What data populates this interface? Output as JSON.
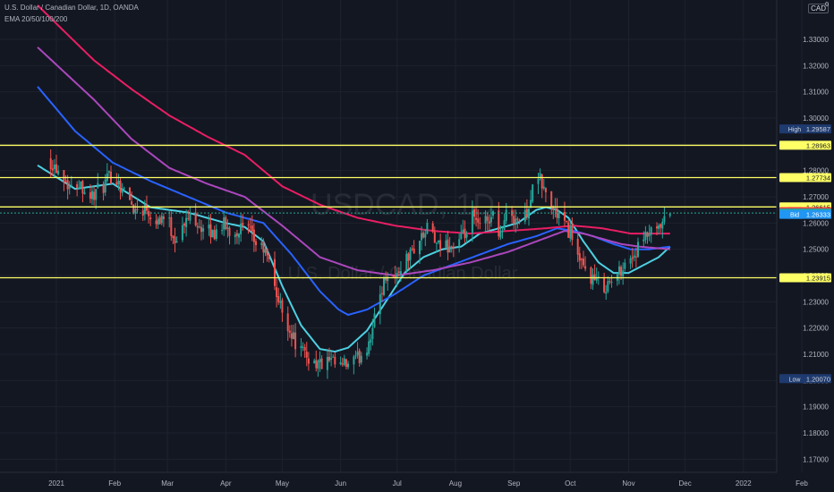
{
  "header": {
    "title": "U.S. Dollar / Canadian Dollar, 1D, OANDA",
    "indicator": "EMA 20/50/100/200",
    "currency": "CAD",
    "currency_suffix": "0"
  },
  "watermark": {
    "symbol": "USDCAD, 1D",
    "name": "U.S. Dollar / Canadian Dollar"
  },
  "colors": {
    "background": "#131722",
    "grid": "#1e222d",
    "up": "#26a69a",
    "down": "#ef5350",
    "level": "#ffff66",
    "ema20": "#4dd0e1",
    "ema50": "#2962ff",
    "ema100": "#ab47bc",
    "ema200": "#e91e63",
    "ask": "#f23645",
    "bid": "#2196f3",
    "last": "#22ab94",
    "extreme": "#1e3a6e"
  },
  "chart_data": {
    "type": "candlestick",
    "symbol": "USDCAD",
    "timeframe": "1D",
    "ylim": [
      1.165,
      1.345
    ],
    "y_ticks": [
      "1.33000",
      "1.32000",
      "1.31000",
      "1.30000",
      "1.29000",
      "1.28000",
      "1.27000",
      "1.26000",
      "1.25000",
      "1.24000",
      "1.23000",
      "1.22000",
      "1.21000",
      "1.20000",
      "1.19000",
      "1.18000",
      "1.17000"
    ],
    "x_labels": [
      "2021",
      "Feb",
      "Mar",
      "Apr",
      "May",
      "Jun",
      "Jul",
      "Aug",
      "Sep",
      "Oct",
      "Nov",
      "Dec",
      "2022",
      "Feb"
    ],
    "x_label_days": [
      0,
      31,
      59,
      90,
      120,
      151,
      181,
      212,
      243,
      273,
      304,
      334,
      365,
      396
    ],
    "candle_last_day": 326,
    "close_anchors": [
      [
        -5,
        1.285
      ],
      [
        3,
        1.279
      ],
      [
        8,
        1.273
      ],
      [
        12,
        1.276
      ],
      [
        18,
        1.27
      ],
      [
        25,
        1.274
      ],
      [
        30,
        1.279
      ],
      [
        36,
        1.272
      ],
      [
        42,
        1.265
      ],
      [
        48,
        1.266
      ],
      [
        52,
        1.261
      ],
      [
        58,
        1.263
      ],
      [
        63,
        1.254
      ],
      [
        67,
        1.258
      ],
      [
        72,
        1.264
      ],
      [
        78,
        1.257
      ],
      [
        84,
        1.256
      ],
      [
        88,
        1.26
      ],
      [
        93,
        1.256
      ],
      [
        98,
        1.258
      ],
      [
        102,
        1.257
      ],
      [
        106,
        1.252
      ],
      [
        110,
        1.25
      ],
      [
        114,
        1.243
      ],
      [
        118,
        1.23
      ],
      [
        122,
        1.223
      ],
      [
        126,
        1.216
      ],
      [
        130,
        1.211
      ],
      [
        135,
        1.208
      ],
      [
        140,
        1.206
      ],
      [
        145,
        1.207
      ],
      [
        150,
        1.205
      ],
      [
        155,
        1.206
      ],
      [
        160,
        1.208
      ],
      [
        165,
        1.213
      ],
      [
        169,
        1.223
      ],
      [
        172,
        1.233
      ],
      [
        176,
        1.242
      ],
      [
        180,
        1.239
      ],
      [
        184,
        1.245
      ],
      [
        188,
        1.248
      ],
      [
        192,
        1.253
      ],
      [
        196,
        1.256
      ],
      [
        199,
        1.26
      ],
      [
        202,
        1.25
      ],
      [
        206,
        1.252
      ],
      [
        210,
        1.251
      ],
      [
        214,
        1.253
      ],
      [
        218,
        1.256
      ],
      [
        221,
        1.262
      ],
      [
        225,
        1.258
      ],
      [
        228,
        1.261
      ],
      [
        232,
        1.263
      ],
      [
        236,
        1.256
      ],
      [
        240,
        1.265
      ],
      [
        244,
        1.262
      ],
      [
        248,
        1.26
      ],
      [
        252,
        1.27
      ],
      [
        256,
        1.278
      ],
      [
        260,
        1.271
      ],
      [
        264,
        1.265
      ],
      [
        268,
        1.262
      ],
      [
        271,
        1.258
      ],
      [
        274,
        1.256
      ],
      [
        278,
        1.244
      ],
      [
        282,
        1.241
      ],
      [
        286,
        1.238
      ],
      [
        290,
        1.236
      ],
      [
        294,
        1.237
      ],
      [
        298,
        1.24
      ],
      [
        302,
        1.245
      ],
      [
        306,
        1.247
      ],
      [
        310,
        1.251
      ],
      [
        315,
        1.256
      ],
      [
        318,
        1.255
      ],
      [
        322,
        1.259
      ],
      [
        326,
        1.2638
      ]
    ],
    "ema_anchors": {
      "EMA 20": [
        [
          -10,
          1.282
        ],
        [
          10,
          1.273
        ],
        [
          30,
          1.275
        ],
        [
          50,
          1.266
        ],
        [
          70,
          1.264
        ],
        [
          90,
          1.26
        ],
        [
          100,
          1.2585
        ],
        [
          110,
          1.253
        ],
        [
          120,
          1.236
        ],
        [
          130,
          1.221
        ],
        [
          140,
          1.212
        ],
        [
          148,
          1.211
        ],
        [
          155,
          1.2125
        ],
        [
          165,
          1.219
        ],
        [
          175,
          1.23
        ],
        [
          185,
          1.241
        ],
        [
          195,
          1.247
        ],
        [
          205,
          1.25
        ],
        [
          215,
          1.251
        ],
        [
          225,
          1.256
        ],
        [
          235,
          1.258
        ],
        [
          245,
          1.26
        ],
        [
          255,
          1.265
        ],
        [
          260,
          1.266
        ],
        [
          266,
          1.265
        ],
        [
          272,
          1.262
        ],
        [
          280,
          1.253
        ],
        [
          288,
          1.245
        ],
        [
          296,
          1.241
        ],
        [
          304,
          1.241
        ],
        [
          312,
          1.244
        ],
        [
          320,
          1.247
        ],
        [
          326,
          1.251
        ]
      ],
      "EMA 50": [
        [
          -10,
          1.312
        ],
        [
          10,
          1.295
        ],
        [
          30,
          1.283
        ],
        [
          50,
          1.276
        ],
        [
          70,
          1.27
        ],
        [
          90,
          1.264
        ],
        [
          110,
          1.26
        ],
        [
          125,
          1.248
        ],
        [
          140,
          1.234
        ],
        [
          150,
          1.227
        ],
        [
          155,
          1.225
        ],
        [
          165,
          1.227
        ],
        [
          180,
          1.233
        ],
        [
          195,
          1.24
        ],
        [
          210,
          1.244
        ],
        [
          225,
          1.248
        ],
        [
          240,
          1.252
        ],
        [
          255,
          1.255
        ],
        [
          266,
          1.258
        ],
        [
          275,
          1.257
        ],
        [
          285,
          1.255
        ],
        [
          296,
          1.252
        ],
        [
          305,
          1.25
        ],
        [
          315,
          1.25
        ],
        [
          326,
          1.251
        ]
      ],
      "EMA 100": [
        [
          -10,
          1.327
        ],
        [
          20,
          1.307
        ],
        [
          40,
          1.292
        ],
        [
          60,
          1.281
        ],
        [
          80,
          1.275
        ],
        [
          100,
          1.27
        ],
        [
          120,
          1.259
        ],
        [
          140,
          1.247
        ],
        [
          160,
          1.242
        ],
        [
          180,
          1.24
        ],
        [
          200,
          1.242
        ],
        [
          220,
          1.245
        ],
        [
          240,
          1.249
        ],
        [
          255,
          1.253
        ],
        [
          270,
          1.257
        ],
        [
          280,
          1.256
        ],
        [
          290,
          1.254
        ],
        [
          300,
          1.252
        ],
        [
          310,
          1.251
        ],
        [
          326,
          1.25
        ]
      ],
      "EMA 200": [
        [
          -10,
          1.343
        ],
        [
          20,
          1.322
        ],
        [
          40,
          1.311
        ],
        [
          60,
          1.301
        ],
        [
          80,
          1.293
        ],
        [
          100,
          1.286
        ],
        [
          120,
          1.274
        ],
        [
          140,
          1.267
        ],
        [
          160,
          1.262
        ],
        [
          180,
          1.259
        ],
        [
          200,
          1.257
        ],
        [
          220,
          1.256
        ],
        [
          240,
          1.257
        ],
        [
          260,
          1.258
        ],
        [
          275,
          1.259
        ],
        [
          290,
          1.258
        ],
        [
          305,
          1.256
        ],
        [
          326,
          1.256
        ]
      ]
    },
    "horizontal_levels": [
      1.28963,
      1.27734,
      1.26615,
      1.23915
    ],
    "price_labels": [
      {
        "label": "High",
        "value": "1.29587"
      },
      {
        "label": "",
        "value": "1.28963"
      },
      {
        "label": "",
        "value": "1.27734"
      },
      {
        "label": "",
        "value": "1.26615"
      },
      {
        "label": "Ask",
        "value": "1.26433"
      },
      {
        "label": "",
        "value": "1.26383"
      },
      {
        "label": "Bid",
        "value": "1.26333"
      },
      {
        "label": "",
        "value": "1.23915"
      },
      {
        "label": "Low",
        "value": "1.20070"
      }
    ]
  }
}
